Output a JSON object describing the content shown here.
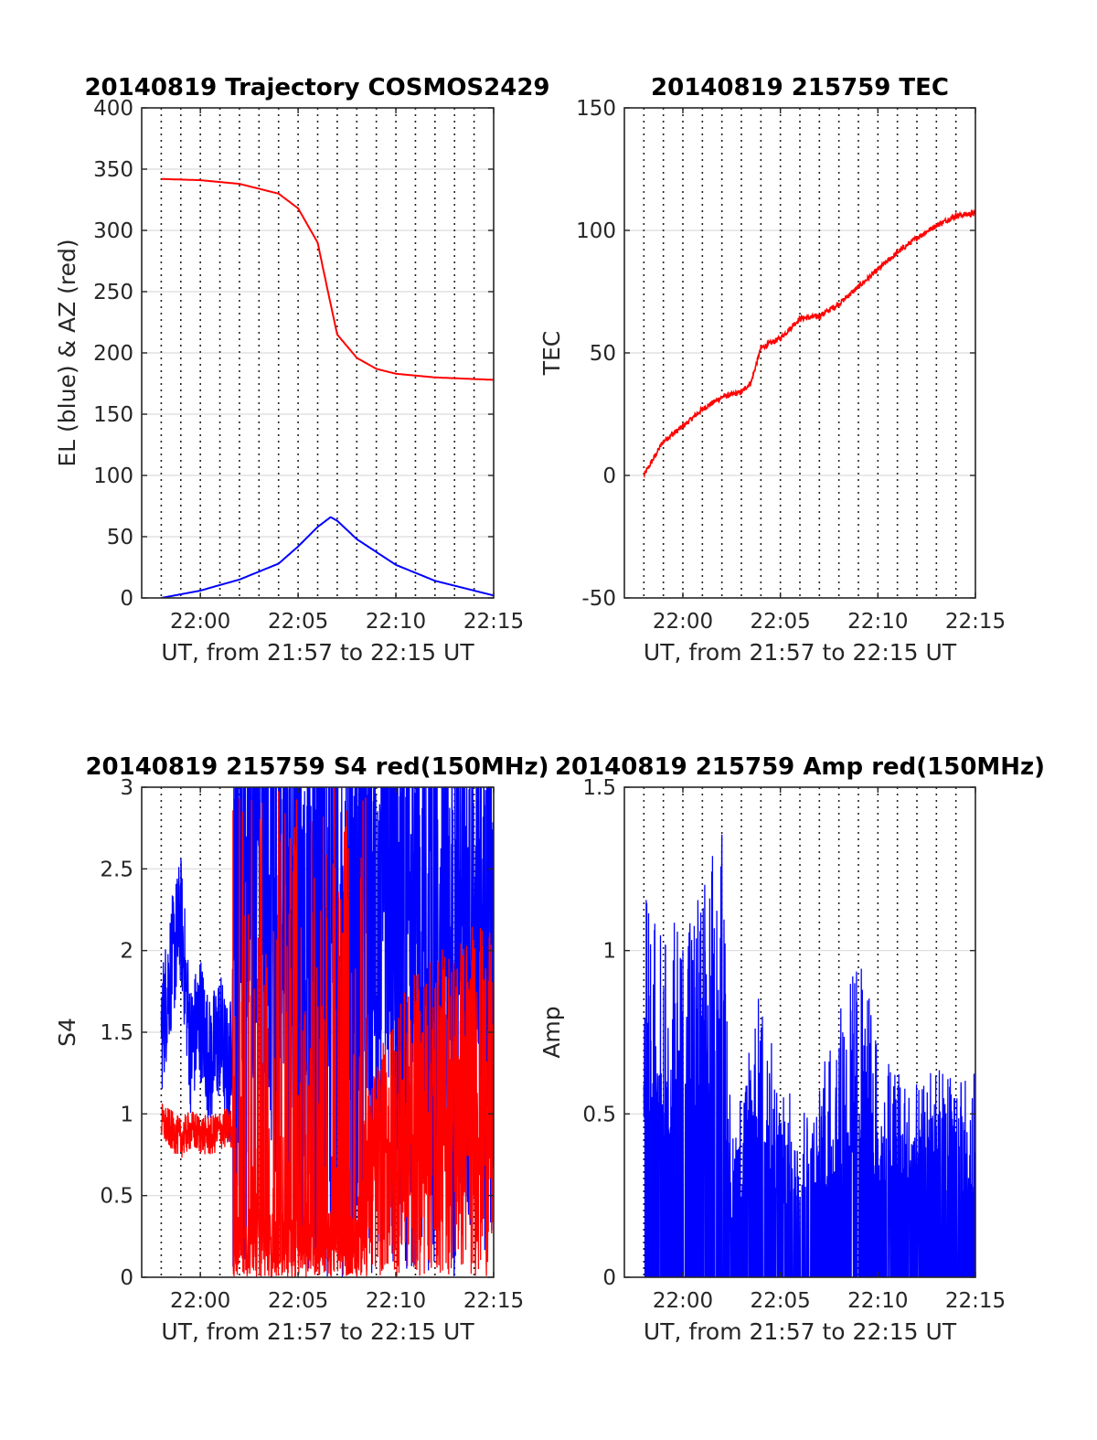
{
  "colors": {
    "blue": "#0000ff",
    "red": "#ff0000",
    "grid": "#dcdcdc",
    "axis": "#262626"
  },
  "chart_data": [
    {
      "id": "trajectory",
      "type": "line",
      "title": "20140819 Trajectory COSMOS2429",
      "xlabel": "UT, from 21:57 to 22:15 UT",
      "ylabel": "EL (blue) & AZ (red)",
      "xlim": [
        "21:57",
        "22:15"
      ],
      "ylim": [
        0,
        400
      ],
      "yticks": [
        "0",
        "50",
        "100",
        "150",
        "200",
        "250",
        "300",
        "350",
        "400"
      ],
      "xticks": [
        "22:00",
        "22:05",
        "22:10",
        "22:15"
      ],
      "grid": true,
      "series": [
        {
          "color": "red",
          "x": [
            "21:58",
            "22:00",
            "22:02",
            "22:04",
            "22:05",
            "22:06",
            "22:06:30",
            "22:07",
            "22:08",
            "22:09",
            "22:10",
            "22:12",
            "22:15"
          ],
          "values": [
            342,
            341,
            338,
            330,
            318,
            290,
            252,
            215,
            196,
            187,
            183,
            180,
            178
          ]
        },
        {
          "color": "blue",
          "x": [
            "21:58",
            "22:00",
            "22:02",
            "22:04",
            "22:05",
            "22:06",
            "22:06:40",
            "22:07",
            "22:08",
            "22:10",
            "22:12",
            "22:14",
            "22:15"
          ],
          "values": [
            0,
            6,
            15,
            28,
            42,
            58,
            66,
            63,
            48,
            27,
            14,
            6,
            2
          ]
        }
      ]
    },
    {
      "id": "tec",
      "type": "line",
      "title": "20140819 215759 TEC",
      "xlabel": "UT, from 21:57 to 22:15 UT",
      "ylabel": "TEC",
      "xlim": [
        "21:57",
        "22:15"
      ],
      "ylim": [
        -50,
        150
      ],
      "yticks": [
        "-50",
        "0",
        "50",
        "100",
        "150"
      ],
      "xticks": [
        "22:00",
        "22:05",
        "22:10",
        "22:15"
      ],
      "grid": true,
      "series": [
        {
          "color": "red",
          "x": [
            "21:58",
            "21:59",
            "22:00",
            "22:01",
            "22:02",
            "22:03",
            "22:03:30",
            "22:04",
            "22:05",
            "22:06",
            "22:07",
            "22:08",
            "22:09",
            "22:10",
            "22:11",
            "22:12",
            "22:13",
            "22:14",
            "22:15"
          ],
          "values": [
            0,
            14,
            20,
            27,
            32,
            34,
            38,
            52,
            56,
            64,
            65,
            70,
            77,
            84,
            91,
            97,
            102,
            106,
            107
          ]
        }
      ]
    },
    {
      "id": "s4",
      "type": "line",
      "title": "20140819 215759 S4 red(150MHz)",
      "xlabel": "UT, from 21:57 to 22:15 UT",
      "ylabel": "S4",
      "xlim": [
        "21:57",
        "22:15"
      ],
      "ylim": [
        0,
        3
      ],
      "yticks": [
        "0",
        "0.5",
        "1",
        "1.5",
        "2",
        "2.5",
        "3"
      ],
      "xticks": [
        "22:00",
        "22:05",
        "22:10",
        "22:15"
      ],
      "grid": true,
      "series": [
        {
          "color": "blue",
          "x": [
            "21:58",
            "21:58:30",
            "21:59",
            "21:59:30",
            "22:00",
            "22:00:30",
            "22:01",
            "22:01:30",
            "22:02",
            "22:03",
            "22:04",
            "22:05",
            "22:06",
            "22:07",
            "22:08",
            "22:09",
            "22:10",
            "22:11",
            "22:12",
            "22:13",
            "22:14",
            "22:15"
          ],
          "values": [
            1.5,
            1.9,
            2.2,
            1.4,
            1.6,
            1.3,
            1.5,
            1.2,
            2.8,
            2.6,
            2.9,
            2.7,
            2.8,
            2.5,
            2.4,
            2.0,
            2.3,
            2.6,
            2.7,
            2.5,
            2.8,
            2.6
          ]
        },
        {
          "color": "red",
          "x": [
            "21:58",
            "21:58:30",
            "21:59",
            "21:59:30",
            "22:00",
            "22:00:30",
            "22:01",
            "22:01:30",
            "22:02",
            "22:03",
            "22:04",
            "22:05",
            "22:06",
            "22:07",
            "22:08",
            "22:09",
            "22:10",
            "22:11",
            "22:12",
            "22:13",
            "22:14",
            "22:15"
          ],
          "values": [
            0.95,
            0.9,
            0.85,
            0.9,
            0.88,
            0.86,
            0.9,
            0.92,
            0.8,
            1.2,
            0.9,
            1.1,
            1.4,
            1.0,
            0.9,
            1.2,
            1.5,
            1.7,
            1.8,
            1.9,
            2.0,
            1.9
          ]
        }
      ]
    },
    {
      "id": "amp",
      "type": "line",
      "title": "20140819 215759 Amp red(150MHz)",
      "xlabel": "UT, from 21:57 to 22:15 UT",
      "ylabel": "Amp",
      "xlim": [
        "21:57",
        "22:15"
      ],
      "ylim": [
        0,
        1.5
      ],
      "yticks": [
        "0",
        "0.5",
        "1",
        "1.5"
      ],
      "xticks": [
        "22:00",
        "22:05",
        "22:10",
        "22:15"
      ],
      "grid": true,
      "series": [
        {
          "color": "blue",
          "x": [
            "21:58",
            "21:59",
            "22:00",
            "22:01",
            "22:02",
            "22:02:30",
            "22:03",
            "22:04",
            "22:05",
            "22:06",
            "22:07",
            "22:08",
            "22:09",
            "22:10",
            "22:11",
            "22:12",
            "22:13",
            "22:14",
            "22:15"
          ],
          "values": [
            1.2,
            1.05,
            1.15,
            1.2,
            1.4,
            0.42,
            0.6,
            0.95,
            0.55,
            0.6,
            0.6,
            0.85,
            1.0,
            0.75,
            0.65,
            0.6,
            0.65,
            0.6,
            0.65
          ]
        }
      ]
    }
  ]
}
